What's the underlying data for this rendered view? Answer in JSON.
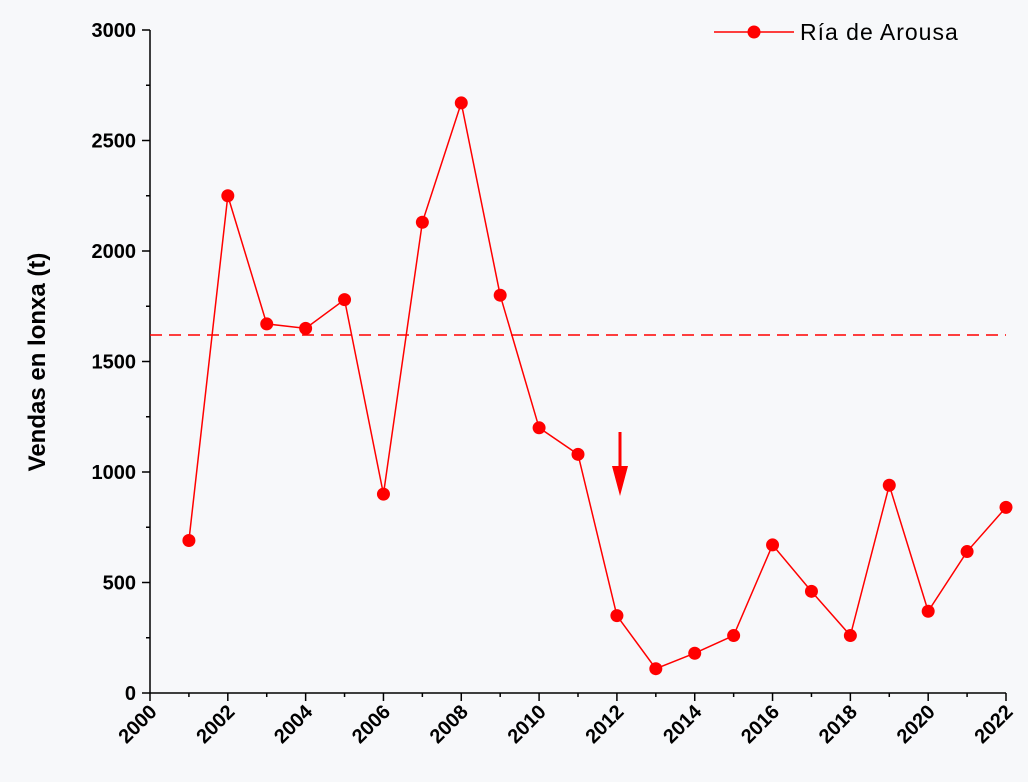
{
  "chart_data": {
    "type": "line",
    "y_label": "Vendas en lonxa (t)",
    "x": [
      2001,
      2002,
      2003,
      2004,
      2005,
      2006,
      2007,
      2008,
      2009,
      2010,
      2011,
      2012,
      2013,
      2014,
      2015,
      2016,
      2017,
      2018,
      2019,
      2020,
      2021,
      2022
    ],
    "series": [
      {
        "name": "Ría de Arousa",
        "color": "#ff0000",
        "values": [
          690,
          2250,
          1670,
          1650,
          1780,
          900,
          2130,
          2670,
          1800,
          1200,
          1080,
          350,
          110,
          180,
          260,
          670,
          460,
          260,
          940,
          370,
          640,
          840
        ]
      }
    ],
    "reference_line": 1620,
    "xlim": [
      2000,
      2022
    ],
    "xticks": [
      2000,
      2002,
      2004,
      2006,
      2008,
      2010,
      2012,
      2014,
      2016,
      2018,
      2020,
      2022
    ],
    "ylim": [
      0,
      3000
    ],
    "yticks": [
      0,
      500,
      1000,
      1500,
      2000,
      2500,
      3000
    ],
    "legend": "top-right"
  }
}
